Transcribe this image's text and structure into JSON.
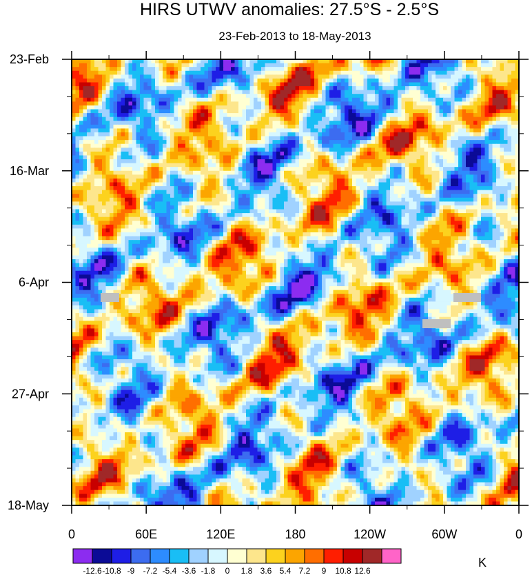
{
  "chart_data": {
    "type": "heatmap",
    "title": "HIRS UTWV anomalies: 27.5°S - 2.5°S",
    "subtitle": "23-Feb-2013 to 18-May-2013",
    "x_ticks": [
      "0",
      "60E",
      "120E",
      "180",
      "120W",
      "60W",
      "0"
    ],
    "y_ticks": [
      "23-Feb",
      "16-Mar",
      "6-Apr",
      "27-Apr",
      "18-May"
    ],
    "xlim": [
      0,
      360
    ],
    "ylim": [
      "2013-02-23",
      "2013-05-18"
    ],
    "colorbar": {
      "unit": "K",
      "levels": [
        "-12.6",
        "-10.8",
        "-9",
        "-7.2",
        "-5.4",
        "-3.6",
        "-1.8",
        "0",
        "1.8",
        "3.6",
        "5.4",
        "7.2",
        "9",
        "10.8",
        "12.6"
      ],
      "colors": [
        "#8c2cf0",
        "#0b0b96",
        "#1e1ee6",
        "#3c6cf0",
        "#2d8cff",
        "#19bef5",
        "#a0d2ff",
        "#d7f7ff",
        "#ffffd2",
        "#fde68c",
        "#fcd21e",
        "#fca500",
        "#ff6e00",
        "#ff1e00",
        "#c80000",
        "#a02828",
        "#ff64c8"
      ]
    },
    "missing_color": "#bfbfbf",
    "grid": false
  }
}
